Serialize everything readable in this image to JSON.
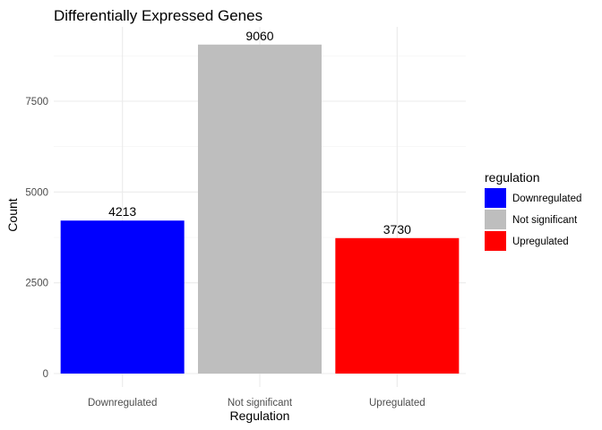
{
  "chart_data": {
    "type": "bar",
    "title": "Differentially Expressed Genes",
    "xlabel": "Regulation",
    "ylabel": "Count",
    "categories": [
      "Downregulated",
      "Not significant",
      "Upregulated"
    ],
    "values": [
      4213,
      9060,
      3730
    ],
    "data_labels": [
      "4213",
      "9060",
      "3730"
    ],
    "bar_colors": [
      "#0000FF",
      "#BEBEBE",
      "#FF0000"
    ],
    "ylim": [
      0,
      9500
    ],
    "y_ticks": [
      0,
      2500,
      5000,
      7500
    ],
    "y_tick_labels": [
      "0",
      "2500",
      "5000",
      "7500"
    ],
    "grid": true,
    "legend": {
      "title": "regulation",
      "placement": "right",
      "entries": [
        {
          "label": "Downregulated",
          "color": "#0000FF"
        },
        {
          "label": "Not significant",
          "color": "#BEBEBE"
        },
        {
          "label": "Upregulated",
          "color": "#FF0000"
        }
      ]
    }
  }
}
